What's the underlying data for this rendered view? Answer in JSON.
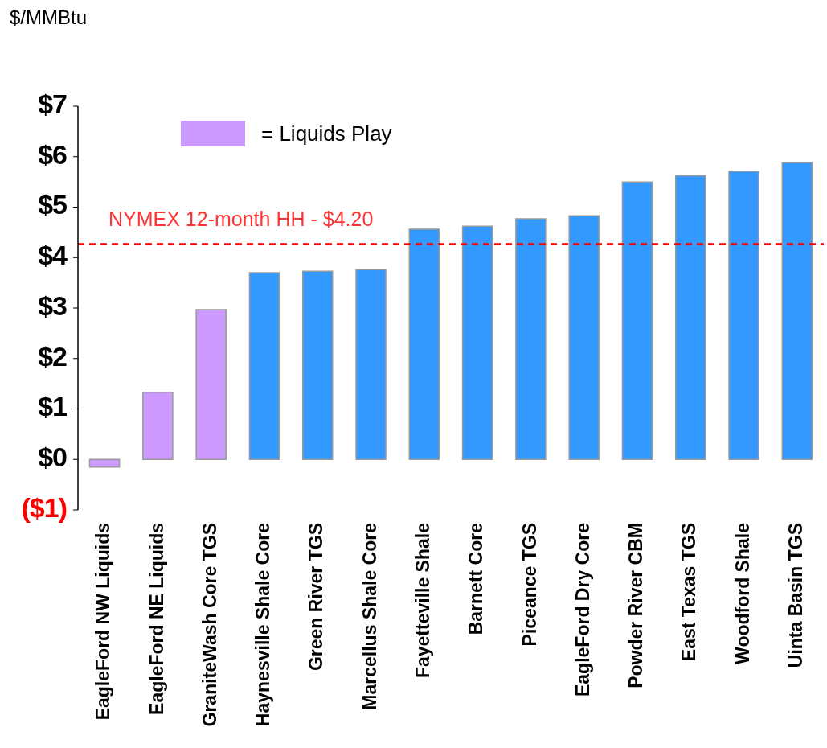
{
  "chart_data": {
    "type": "bar",
    "ylabel": "$/MMBtu",
    "categories": [
      "EagleFord NW Liquids",
      "EagleFord NE Liquids",
      "GraniteWash Core TGS",
      "Haynesville Shale Core",
      "Green River TGS",
      "Marcellus Shale Core",
      "Fayetteville Shale",
      "Barnett Core",
      "Piceance TGS",
      "EagleFord Dry Core",
      "Powder River CBM",
      "East Texas TGS",
      "Woodford Shale",
      "Uinta Basin TGS"
    ],
    "stacked": true,
    "series": [
      {
        "name": "= Liquids Play",
        "color": "#cc99ff",
        "values": [
          -0.15,
          1.33,
          2.97,
          null,
          null,
          null,
          null,
          null,
          null,
          null,
          null,
          null,
          null,
          null
        ]
      },
      {
        "color": "#3399ff",
        "values": [
          null,
          null,
          null,
          3.7,
          3.73,
          3.76,
          4.56,
          4.62,
          4.77,
          4.83,
          5.5,
          5.62,
          5.71,
          5.88
        ]
      }
    ],
    "ylim": [
      -1,
      7
    ],
    "yticks": [
      {
        "value": -1,
        "label": "($1)"
      },
      {
        "value": 0,
        "label": "$0"
      },
      {
        "value": 1,
        "label": "$1"
      },
      {
        "value": 2,
        "label": "$2"
      },
      {
        "value": 3,
        "label": "$3"
      },
      {
        "value": 4,
        "label": "$4"
      },
      {
        "value": 5,
        "label": "$5"
      },
      {
        "value": 6,
        "label": "$6"
      },
      {
        "value": 7,
        "label": "$7"
      }
    ],
    "ref_lines": [
      {
        "axis": "y",
        "value": 4.27,
        "label": "NYMEX 12-month HH - $4.20",
        "color": "#ff0000",
        "line_style": "dashed"
      }
    ],
    "legend": "top left"
  }
}
